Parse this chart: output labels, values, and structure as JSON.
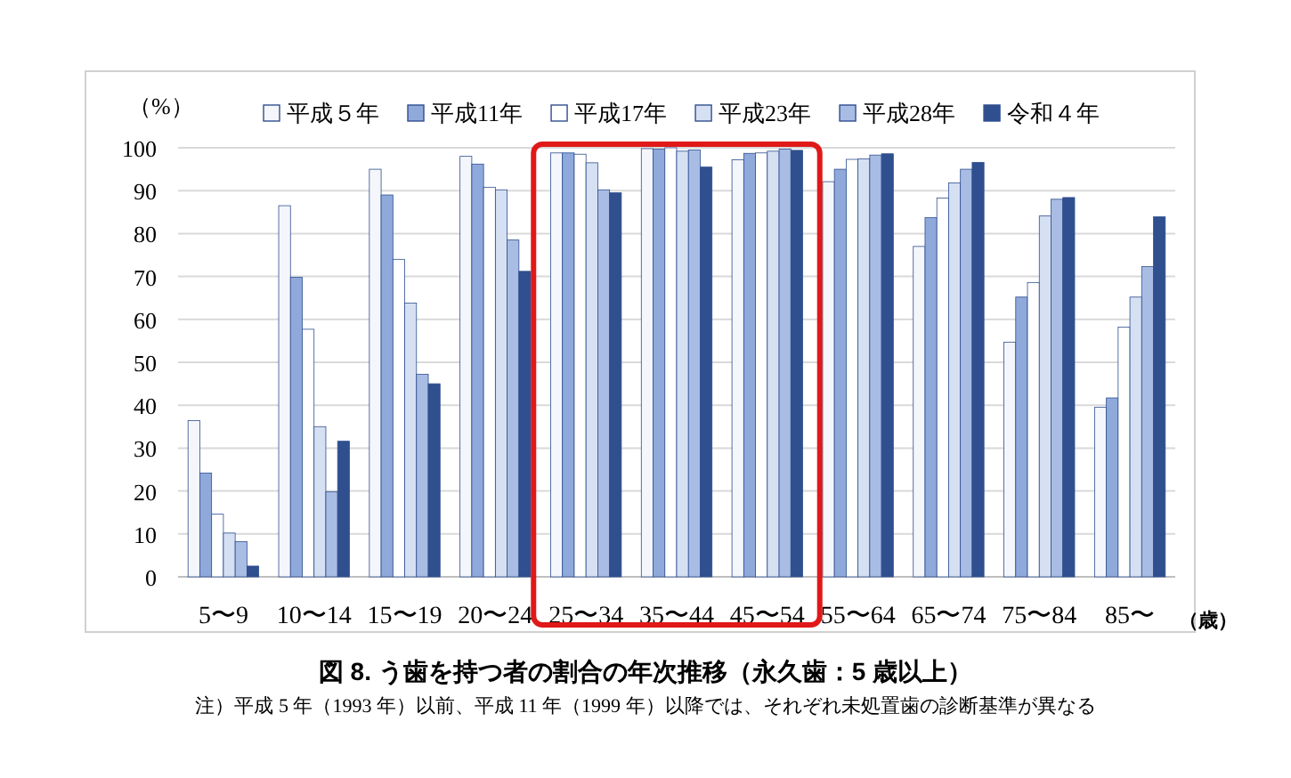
{
  "chart_data": {
    "type": "bar",
    "title": "図 8.  う歯を持つ者の割合の年次推移（永久歯：5 歳以上）",
    "ylabel": "（%）",
    "xlabel": "（歳）",
    "annotations": [
      "注）平成 5 年（1993 年）以前、平成 11 年（1999 年）以降では、それぞれ未処置歯の診断基準が異なる"
    ],
    "categories": [
      "5〜9",
      "10〜14",
      "15〜19",
      "20〜24",
      "25〜34",
      "35〜44",
      "45〜54",
      "55〜64",
      "65〜74",
      "75〜84",
      "85〜"
    ],
    "series": [
      {
        "name": "平成５年",
        "color": "#f4f6fb",
        "values": [
          36.4,
          86.5,
          95,
          98,
          98.8,
          99.8,
          97.2,
          92.1,
          77,
          54.7,
          39.5
        ]
      },
      {
        "name": "平成11年",
        "color": "#8fa9db",
        "values": [
          24.2,
          69.8,
          89,
          96.2,
          98.8,
          99.7,
          98.7,
          95,
          83.7,
          65.2,
          41.7
        ]
      },
      {
        "name": "平成17年",
        "color": "#ffffff",
        "values": [
          14.6,
          57.7,
          74,
          90.8,
          98.5,
          100,
          98.8,
          97.3,
          88.3,
          68.6,
          58.2
        ]
      },
      {
        "name": "平成23年",
        "color": "#d6e0f3",
        "values": [
          10.2,
          35,
          63.8,
          90.2,
          96.5,
          99.2,
          99.2,
          97.4,
          91.8,
          84.1,
          65.2
        ]
      },
      {
        "name": "平成28年",
        "color": "#a9bce3",
        "values": [
          8.2,
          19.8,
          47.2,
          78.5,
          90.2,
          99.5,
          99.7,
          98.3,
          95,
          88,
          72.3
        ]
      },
      {
        "name": "令和４年",
        "color": "#2f4f8f",
        "values": [
          2.5,
          31.6,
          45,
          71.2,
          89.5,
          95.5,
          99.4,
          98.6,
          96.6,
          88.4,
          83.9
        ]
      }
    ],
    "ylim": [
      0,
      100
    ],
    "yticks": [
      0,
      10,
      20,
      30,
      40,
      50,
      60,
      70,
      80,
      90,
      100
    ],
    "grid": "y",
    "legend": "top"
  }
}
